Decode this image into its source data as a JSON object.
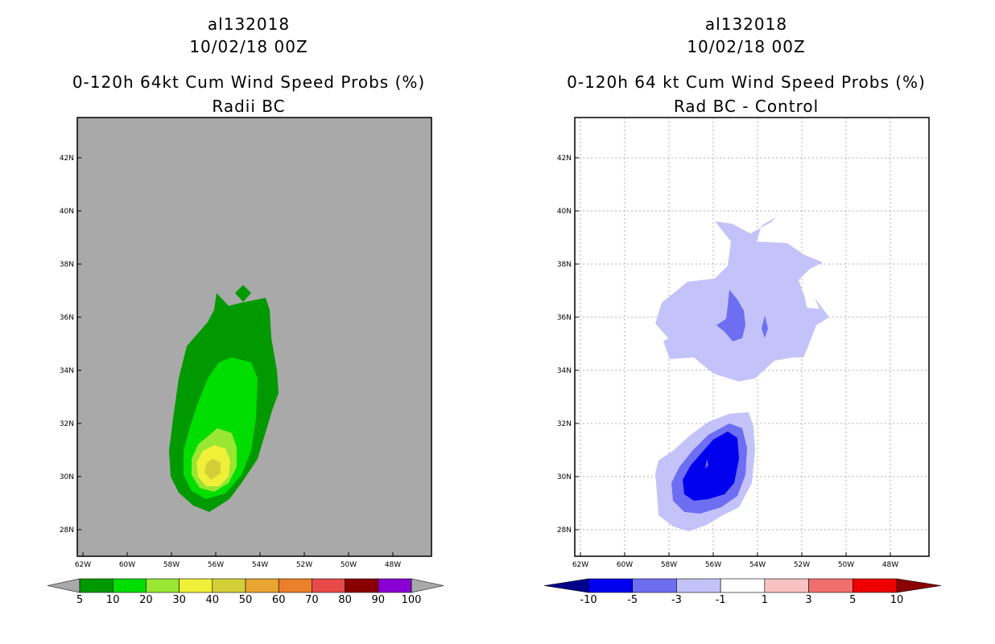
{
  "left_panel": {
    "title_line1": "al132018",
    "title_line2": "10/02/18 00Z",
    "title_line3": "0-120h 64kt Cum Wind Speed Probs (%)",
    "title_line4": "Radii BC",
    "background_color": "#a9a9a9",
    "colorbar": {
      "labels": [
        "5",
        "10",
        "20",
        "30",
        "40",
        "50",
        "60",
        "70",
        "80",
        "90",
        "100"
      ],
      "colors": [
        "#009900",
        "#00dd00",
        "#99e633",
        "#f0f039",
        "#d4cf36",
        "#e8a530",
        "#ec7f2a",
        "#e84a4a",
        "#8a0000",
        "#8a00d4"
      ],
      "low_arrow_color": "#a9a9a9",
      "high_arrow_color": "#a9a9a9"
    }
  },
  "right_panel": {
    "title_line1": "al132018",
    "title_line2": "10/02/18 00Z",
    "title_line3": "0-120h 64 kt Cum Wind Speed Probs (%)",
    "title_line4": "Rad BC - Control",
    "background_color": "#ffffff",
    "colorbar": {
      "labels": [
        "-10",
        "-5",
        "-3",
        "-1",
        "1",
        "3",
        "5",
        "10"
      ],
      "colors": [
        "#0000ee",
        "#6e6ef2",
        "#c3c3fa",
        "#ffffff",
        "#fac3c3",
        "#f26e6e",
        "#ee0000"
      ],
      "low_arrow_color": "#00008b",
      "high_arrow_color": "#8b0000"
    }
  },
  "axes": {
    "lon_labels": [
      "62W",
      "60W",
      "58W",
      "56W",
      "54W",
      "52W",
      "50W",
      "48W"
    ],
    "lon_values": [
      -62,
      -60,
      -58,
      -56,
      -54,
      -52,
      -50,
      -48
    ],
    "lat_labels": [
      "28N",
      "30N",
      "32N",
      "34N",
      "36N",
      "38N",
      "40N",
      "42N"
    ],
    "lat_values": [
      28,
      30,
      32,
      34,
      36,
      38,
      40,
      42
    ]
  }
}
